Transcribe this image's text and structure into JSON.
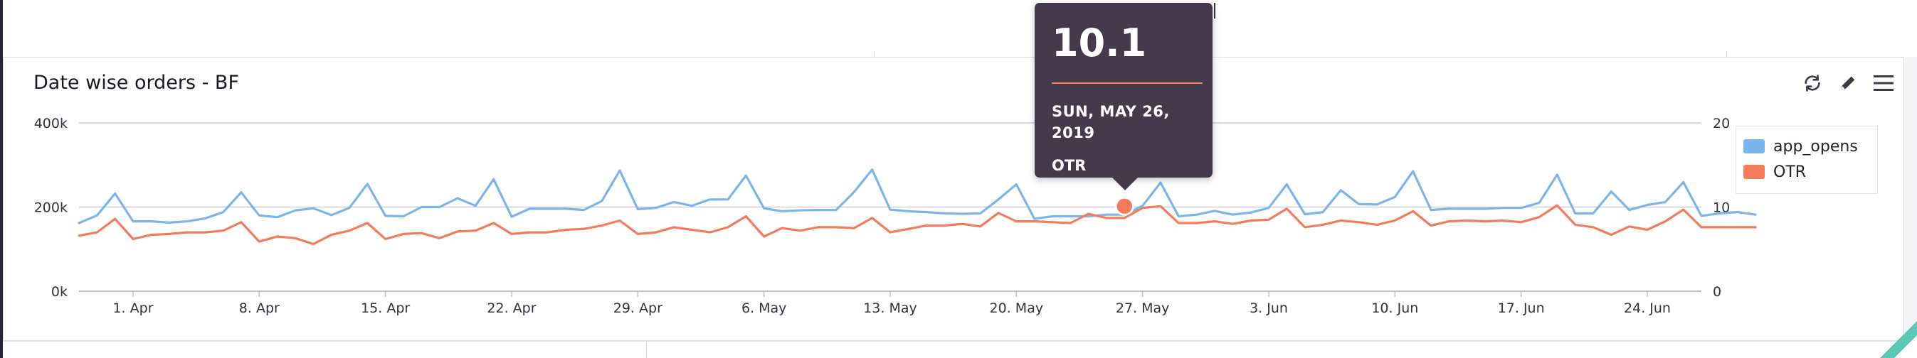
{
  "toolbar": {
    "refresh_icon": "refresh-icon",
    "edit_icon": "pencil-icon",
    "menu_icon": "hamburger-menu-icon"
  },
  "tooltip": {
    "value": "10.1",
    "date": "SUN, MAY 26, 2019",
    "series": "OTR",
    "accent_color": "#f08060"
  },
  "colors": {
    "app_opens": "#7cb5ec",
    "otr": "#f47c5c",
    "tooltip_bg": "#453a4c"
  },
  "chart_data": {
    "type": "line",
    "title": "Date wise orders - BF",
    "x_tick_labels": [
      "1. Apr",
      "8. Apr",
      "15. Apr",
      "22. Apr",
      "29. Apr",
      "6. May",
      "13. May",
      "20. May",
      "27. May",
      "3. Jun",
      "10. Jun",
      "17. Jun",
      "24. Jun"
    ],
    "x_start": "2019-03-29",
    "x_end": "2019-06-27",
    "y_left": {
      "ticks": [
        "0k",
        "200k",
        "400k"
      ],
      "ylim": [
        0,
        400000
      ]
    },
    "y_right": {
      "ticks": [
        "0",
        "10",
        "20"
      ],
      "ylim": [
        0,
        20
      ]
    },
    "grid": true,
    "legend_position": "right",
    "series": [
      {
        "name": "app_opens",
        "axis": "left",
        "values": [
          162000,
          180000,
          232000,
          166000,
          166000,
          163000,
          166000,
          173000,
          188000,
          235000,
          180000,
          176000,
          192000,
          197000,
          181000,
          198000,
          255000,
          179000,
          178000,
          200000,
          200000,
          221000,
          203000,
          266000,
          177000,
          196000,
          196000,
          196000,
          193000,
          214000,
          287000,
          195000,
          198000,
          212000,
          203000,
          218000,
          218000,
          275000,
          197000,
          190000,
          192000,
          193000,
          193000,
          236000,
          289000,
          194000,
          190000,
          188000,
          185000,
          184000,
          185000,
          218000,
          254000,
          172000,
          178000,
          178000,
          178000,
          182000,
          182000,
          203000,
          258000,
          178000,
          182000,
          191000,
          182000,
          187000,
          198000,
          254000,
          183000,
          188000,
          240000,
          207000,
          206000,
          224000,
          285000,
          193000,
          196000,
          196000,
          196000,
          198000,
          198000,
          210000,
          277000,
          185000,
          185000,
          237000,
          193000,
          205000,
          212000,
          259000,
          179000,
          185000,
          188000,
          182000
        ],
        "values_note": ""
      },
      {
        "name": "OTR",
        "axis": "right",
        "values": [
          6.6,
          7.0,
          8.6,
          6.2,
          6.7,
          6.8,
          7.0,
          7.0,
          7.2,
          8.2,
          5.9,
          6.5,
          6.3,
          5.6,
          6.7,
          7.2,
          8.1,
          6.2,
          6.8,
          6.9,
          6.3,
          7.1,
          7.2,
          8.1,
          6.8,
          7.0,
          7.0,
          7.3,
          7.4,
          7.8,
          8.4,
          6.8,
          7.0,
          7.6,
          7.3,
          7.0,
          7.6,
          8.9,
          6.5,
          7.5,
          7.2,
          7.6,
          7.6,
          7.5,
          8.7,
          7.0,
          7.4,
          7.8,
          7.8,
          8.0,
          7.7,
          9.3,
          8.3,
          8.3,
          8.2,
          8.1,
          9.2,
          8.7,
          8.7,
          9.9,
          10.1,
          8.1,
          8.1,
          8.3,
          8.0,
          8.4,
          8.5,
          9.8,
          7.6,
          7.9,
          8.4,
          8.2,
          7.9,
          8.4,
          9.5,
          7.8,
          8.3,
          8.4,
          8.3,
          8.4,
          8.2,
          8.8,
          10.2,
          7.9,
          7.6,
          6.7,
          7.7,
          7.3,
          8.3,
          9.7,
          7.6,
          7.6,
          7.6,
          7.6
        ]
      }
    ],
    "highlight": {
      "series": "OTR",
      "x": "2019-05-26",
      "y": 10.1
    }
  }
}
